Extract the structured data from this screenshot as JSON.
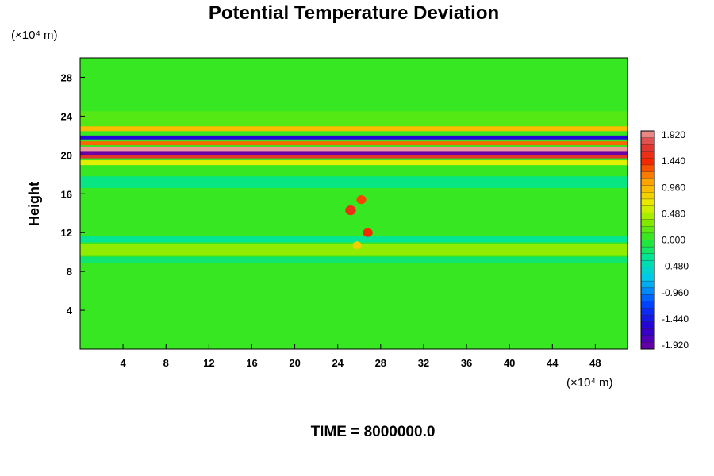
{
  "chart_data": {
    "type": "heatmap",
    "title": "Potential Temperature Deviation",
    "ylabel": "Height",
    "y_unit": "(×10⁴ m)",
    "x_unit": "(×10⁴ m)",
    "footer": "TIME = 8000000.0",
    "xlim": [
      0,
      51
    ],
    "ylim": [
      0,
      30
    ],
    "x_ticks": [
      "4",
      "8",
      "12",
      "16",
      "20",
      "24",
      "28",
      "32",
      "36",
      "40",
      "44",
      "48"
    ],
    "y_ticks": [
      "4",
      "8",
      "12",
      "16",
      "20",
      "24",
      "28"
    ],
    "colorbar": {
      "min": -1.92,
      "max": 1.92,
      "labels": [
        "1.920",
        "1.440",
        "0.960",
        "0.480",
        "0.000",
        "-0.480",
        "-0.960",
        "-1.440",
        "-1.920"
      ]
    },
    "background_value": 0.05,
    "features": [
      {
        "kind": "band",
        "y_center": 23.5,
        "y_width": 2.0,
        "value": 0.15
      },
      {
        "kind": "band",
        "y_center": 22.7,
        "y_width": 0.5,
        "value": 0.9
      },
      {
        "kind": "band",
        "y_center": 21.8,
        "y_width": 0.4,
        "value": -1.5
      },
      {
        "kind": "band",
        "y_center": 21.2,
        "y_width": 0.4,
        "value": 1.2
      },
      {
        "kind": "band",
        "y_center": 20.6,
        "y_width": 0.5,
        "value": 1.9
      },
      {
        "kind": "band",
        "y_center": 20.2,
        "y_width": 0.4,
        "value": -1.9
      },
      {
        "kind": "band",
        "y_center": 19.8,
        "y_width": 0.3,
        "value": 1.6
      },
      {
        "kind": "band",
        "y_center": 19.2,
        "y_width": 0.5,
        "value": 0.6
      },
      {
        "kind": "band",
        "y_center": 17.2,
        "y_width": 1.2,
        "value": -0.25
      },
      {
        "kind": "band",
        "y_center": 10.2,
        "y_width": 1.2,
        "value": 0.35
      },
      {
        "kind": "band",
        "y_center": 11.3,
        "y_width": 0.6,
        "value": -0.3
      },
      {
        "kind": "band",
        "y_center": 9.2,
        "y_width": 0.6,
        "value": -0.2
      },
      {
        "kind": "blob",
        "x": 25.2,
        "y": 14.3,
        "r": 0.5,
        "value": 1.5
      },
      {
        "kind": "blob",
        "x": 26.2,
        "y": 15.4,
        "r": 0.45,
        "value": 1.3
      },
      {
        "kind": "blob",
        "x": 26.8,
        "y": 12.0,
        "r": 0.45,
        "value": 1.4
      },
      {
        "kind": "blob",
        "x": 25.8,
        "y": 10.7,
        "r": 0.4,
        "value": 0.8
      }
    ]
  }
}
